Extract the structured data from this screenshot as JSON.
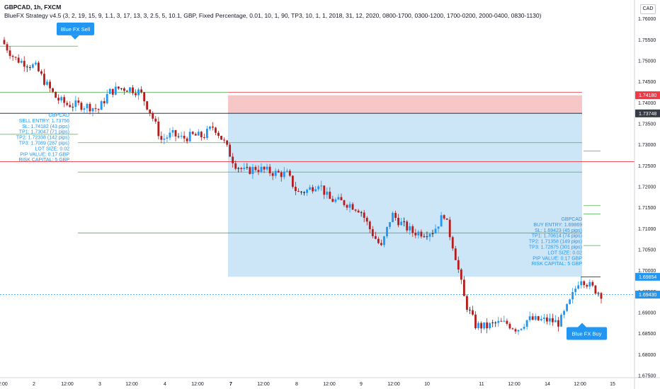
{
  "header": {
    "symbol_line": "GBPCAD, 1h, FXCM",
    "indicator_line": "BlueFX Strategy v4.5 (3, 2, 19, 15, 9, 1.1, 3, 17, 13, 3, 2.5, 5, 10.1, GBP, Fixed Percentage, 0.01, 10, 1, 90, TP3, 10, 1, 1, 2018, 31, 12, 2020, 0800-1700, 0300-1200, 1700-0200, 2000-0400, 0830-1130)"
  },
  "currency_button": "CAD",
  "colors": {
    "bull": "#2196f3",
    "bear": "#b71c1c",
    "doji": "#131722",
    "sell_zone": "#f7c6c6",
    "buy_zone": "#cde6f7",
    "tp_line": "#4caf50",
    "sl_tag": "#f23645",
    "price_tag": "#2196f3",
    "info_text": "#2196f3"
  },
  "chart_data": {
    "type": "candlestick",
    "ylim": [
      1.6745,
      1.7645
    ],
    "y_ticks": [
      "1.76000",
      "1.75500",
      "1.75000",
      "1.74500",
      "1.74000",
      "1.73500",
      "1.73000",
      "1.72500",
      "1.72000",
      "1.71500",
      "1.71000",
      "1.70500",
      "1.70000",
      "1.69500",
      "1.69000",
      "1.68500",
      "1.68000",
      "1.67500"
    ],
    "x_ticks": [
      "2:00",
      "2",
      "12:00",
      "3",
      "12:00",
      "4",
      "12:00",
      "7",
      "12:00",
      "8",
      "12:00",
      "9",
      "12:00",
      "10",
      "11",
      "12:00",
      "14",
      "12:00",
      "15"
    ],
    "price_tags": [
      {
        "label": "1.74180",
        "value": 1.7418,
        "style": "red"
      },
      {
        "label": "1.73748",
        "value": 1.73748,
        "style": "dark"
      },
      {
        "label": "1.69854",
        "value": 1.69854,
        "style": "blue"
      },
      {
        "label": "1.69430",
        "value": 1.6943,
        "style": "blue"
      }
    ],
    "zones": [
      {
        "name": "sell-stop-zone",
        "from": 1.7418,
        "to": 1.73748
      },
      {
        "name": "buy-zone",
        "from": 1.73748,
        "to": 1.69854
      }
    ],
    "levels": [
      1.7535,
      1.7425,
      1.7375,
      1.7305,
      1.7235,
      1.709,
      1.6985
    ],
    "callouts": [
      {
        "label": "Blue FX Sell",
        "price": 1.7534
      },
      {
        "label": "Blue FX Buy",
        "price": 1.6874
      }
    ],
    "sell_info": [
      "GBPCAD",
      "SELL ENTRY: 1.73756",
      "SL: 1.74182 (43 pips)",
      "TP1: 1.73047 (71 pips)",
      "TP2: 1.72338 (142 pips)",
      "TP3: 1.7089 (287 pips)",
      "LOT SIZE: 0.02",
      "PIP VALUE: 0.17 GBP",
      "RISK CAPITAL: 5 GBP"
    ],
    "buy_info": [
      "GBPCAD",
      "BUY ENTRY: 1.69869",
      "SL: 1.69423 (45 pips)",
      "TP1: 1.70614 (74 pips)",
      "TP2: 1.71358 (149 pips)",
      "TP3: 1.72875 (301 pips)",
      "LOT SIZE: 0.02",
      "PIP VALUE: 0.17 GBP",
      "RISK CAPITAL: 5 GBP"
    ],
    "close_path": [
      1.754,
      1.7505,
      1.7495,
      1.7485,
      1.7445,
      1.741,
      1.7396,
      1.7395,
      1.7392,
      1.7384,
      1.7425,
      1.7435,
      1.7434,
      1.7425,
      1.7375,
      1.7312,
      1.7325,
      1.7315,
      1.7322,
      1.732,
      1.7345,
      1.7305,
      1.7255,
      1.7235,
      1.7245,
      1.7238,
      1.7232,
      1.723,
      1.7185,
      1.7192,
      1.721,
      1.717,
      1.7165,
      1.7158,
      1.7145,
      1.7095,
      1.7055,
      1.7135,
      1.711,
      1.7092,
      1.709,
      1.7095,
      1.7135,
      1.7045,
      1.6925,
      1.687,
      1.6866,
      1.6875,
      1.6874,
      1.686,
      1.6884,
      1.6882,
      1.6882,
      1.6875,
      1.6925,
      1.6985,
      1.6962,
      1.6944
    ],
    "candle_count": 210
  }
}
